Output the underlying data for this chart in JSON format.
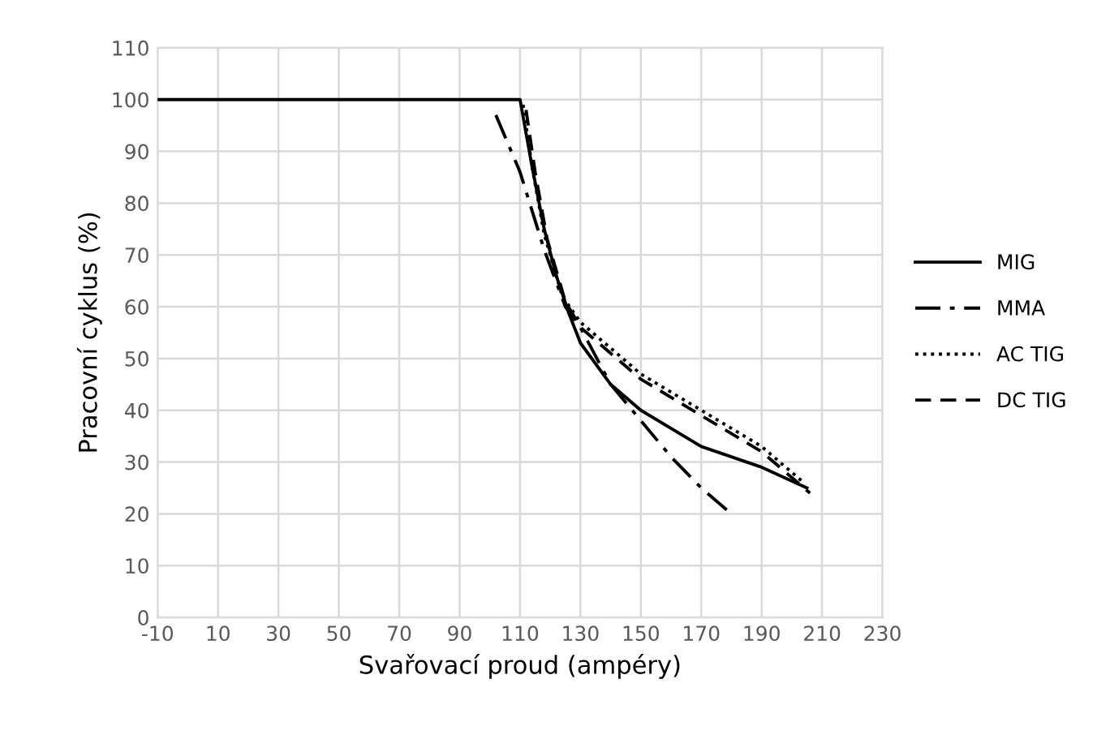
{
  "chart_data": {
    "type": "line",
    "xlabel": "Svařovací proud (ampéry)",
    "ylabel": "Pracovní cyklus (%)",
    "xlim": [
      -10,
      230
    ],
    "xticks": [
      -10,
      10,
      30,
      50,
      70,
      90,
      110,
      130,
      150,
      170,
      190,
      210,
      230
    ],
    "ylim": [
      0,
      110
    ],
    "yticks": [
      0,
      10,
      20,
      30,
      40,
      50,
      60,
      70,
      80,
      90,
      100,
      110
    ],
    "grid": true,
    "legend": "right",
    "marker": "none",
    "series": [
      {
        "name": "MIG",
        "color": "#000000",
        "line_style": "solid",
        "x": [
          -10,
          110,
          114,
          118,
          122,
          126,
          130,
          140,
          150,
          170,
          190,
          205
        ],
        "values": [
          100,
          100,
          87,
          75,
          66,
          59,
          53,
          45,
          40,
          33,
          29,
          25
        ]
      },
      {
        "name": "MMA",
        "color": "#000000",
        "line_style": "dashdot",
        "x": [
          102,
          110,
          118,
          125,
          130,
          140,
          150,
          160,
          170,
          180
        ],
        "values": [
          97,
          86,
          71,
          60,
          56,
          45,
          38,
          31,
          25,
          20
        ]
      },
      {
        "name": "AC TIG",
        "color": "#000000",
        "line_style": "dotted",
        "x": [
          111,
          114,
          118,
          124,
          130,
          140,
          150,
          170,
          190,
          204
        ],
        "values": [
          99,
          87,
          74,
          62,
          57,
          52,
          47,
          40,
          33,
          26
        ]
      },
      {
        "name": "DC TIG",
        "color": "#000000",
        "line_style": "dashed",
        "x": [
          112,
          115,
          119,
          125,
          130,
          140,
          150,
          170,
          190,
          206
        ],
        "values": [
          98,
          86,
          73,
          61,
          56,
          51,
          46,
          39,
          32,
          24
        ]
      }
    ]
  }
}
